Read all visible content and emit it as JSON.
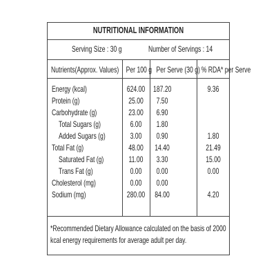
{
  "header": {
    "title": "NUTRITIONAL INFORMATION",
    "serving_size": "Serving Size : 30 g",
    "servings": "Number of Servings : 14"
  },
  "table": {
    "columns": [
      "Nutrients(Approx. Values)",
      "Per 100 g",
      "Per Serve (30 g)",
      "% RDA* per Serve"
    ],
    "rows": [
      {
        "nutrient": "Energy (kcal)",
        "per100g": "624.00",
        "perServe": "187.20",
        "rda": "9.36"
      },
      {
        "nutrient": "Protein (g)",
        "per100g": "25.00",
        "perServe": "7.50"
      },
      {
        "nutrient": "Carbohydrate (g)",
        "per100g": "23.00",
        "perServe": "6.90",
        "children": [
          {
            "nutrient": "Total Sugars (g)",
            "per100g": "6.00",
            "perServe": "1.80"
          },
          {
            "nutrient": "Added Sugars (g)",
            "per100g": "3.00",
            "perServe": "0.90",
            "rda": "1.80"
          }
        ]
      },
      {
        "nutrient": "Total Fat (g)",
        "per100g": "48.00",
        "perServe": "14.40",
        "rda": "21.49",
        "children": [
          {
            "nutrient": "Saturated Fat (g)",
            "per100g": "11.00",
            "perServe": "3.30",
            "rda": "15.00"
          },
          {
            "nutrient": "Trans Fat (g)",
            "per100g": "0.00",
            "perServe": "0.00",
            "rda": "0.00"
          }
        ]
      },
      {
        "nutrient": "Cholesterol (mg)",
        "per100g": "0.00",
        "perServe": "0.00"
      },
      {
        "nutrient": "Sodium (mg)",
        "per100g": "280.00",
        "perServe": "84.00",
        "rda": "4.20"
      }
    ]
  },
  "footnote": [
    "*Recommended Dietary Allowance calculated on the basis of 2000",
    "kcal energy requirements for average adult per day."
  ]
}
